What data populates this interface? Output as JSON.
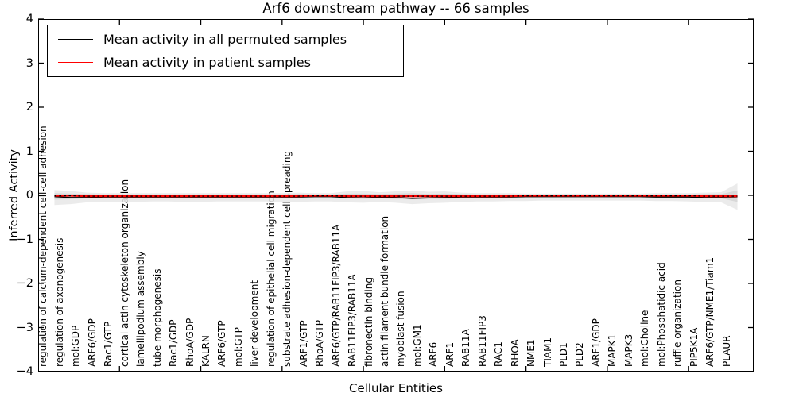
{
  "title": "Arf6 downstream pathway -- 66 samples",
  "legend": {
    "items": [
      {
        "label": "Mean activity in all permuted samples",
        "color": "#000000"
      },
      {
        "label": "Mean activity in patient samples",
        "color": "#ff0000"
      }
    ]
  },
  "axes": {
    "ylabel": "Inferred Activity",
    "xlabel": "Cellular Entities",
    "ytick_labels": [
      "4",
      "3",
      "2",
      "1",
      "0",
      "−1",
      "−2",
      "−3",
      "−4"
    ],
    "ytick_values": [
      4,
      3,
      2,
      1,
      0,
      -1,
      -2,
      -3,
      -4
    ]
  },
  "chart_data": {
    "type": "line",
    "title": "Arf6 downstream pathway -- 66 samples",
    "xlabel": "Cellular Entities",
    "ylabel": "Inferred Activity",
    "ylim": [
      -4,
      4
    ],
    "grid": false,
    "legend_position": "upper left",
    "x_major_tick_positions": [
      5,
      10,
      15,
      20,
      25,
      30,
      35,
      40
    ],
    "categories": [
      "regulation of calcium-dependent cell-cell adhesion",
      "regulation of axonogenesis",
      "mol:GDP",
      "ARF6/GDP",
      "Rac1/GTP",
      "cortical actin cytoskeleton organization",
      "lamellipodium assembly",
      "tube morphogenesis",
      "Rac1/GDP",
      "RhoA/GDP",
      "KALRN",
      "ARF6/GTP",
      "mol:GTP",
      "liver development",
      "regulation of epithelial cell migration",
      "substrate adhesion-dependent cell spreading",
      "ARF1/GTP",
      "RhoA/GTP",
      "ARF6/GTP/RAB11FIP3/RAB11A",
      "RAB11FIP3/RAB11A",
      "fibronectin binding",
      "actin filament bundle formation",
      "myoblast fusion",
      "mol:GM1",
      "ARF6",
      "ARF1",
      "RAB11A",
      "RAB11FIP3",
      "RAC1",
      "RHOA",
      "NME1",
      "TIAM1",
      "PLD1",
      "PLD2",
      "ARF1/GDP",
      "MAPK1",
      "MAPK3",
      "mol:Choline",
      "mol:Phosphatidic acid",
      "ruffle organization",
      "PIP5K1A",
      "ARF6/GTP/NME1/Tiam1",
      "PLAUR"
    ],
    "series": [
      {
        "name": "Mean activity in all permuted samples",
        "color": "#000000",
        "style": "solid",
        "values": [
          -0.03,
          -0.05,
          -0.05,
          -0.04,
          -0.04,
          -0.04,
          -0.04,
          -0.04,
          -0.04,
          -0.04,
          -0.04,
          -0.04,
          -0.04,
          -0.04,
          -0.04,
          -0.04,
          -0.03,
          -0.03,
          -0.05,
          -0.06,
          -0.04,
          -0.05,
          -0.07,
          -0.06,
          -0.05,
          -0.04,
          -0.04,
          -0.04,
          -0.04,
          -0.03,
          -0.03,
          -0.03,
          -0.03,
          -0.03,
          -0.03,
          -0.03,
          -0.03,
          -0.04,
          -0.04,
          -0.04,
          -0.05,
          -0.05,
          -0.06
        ]
      },
      {
        "name": "Mean activity in patient samples",
        "color": "#ff0000",
        "style": "solid-with-black-dash-overlay",
        "values": [
          -0.01,
          -0.01,
          -0.02,
          -0.02,
          -0.02,
          -0.02,
          -0.02,
          -0.02,
          -0.02,
          -0.02,
          -0.02,
          -0.02,
          -0.02,
          -0.02,
          -0.02,
          -0.02,
          -0.01,
          -0.01,
          -0.02,
          -0.02,
          -0.02,
          -0.02,
          -0.02,
          -0.02,
          -0.02,
          -0.02,
          -0.02,
          -0.02,
          -0.02,
          -0.01,
          -0.01,
          -0.01,
          -0.01,
          -0.01,
          -0.01,
          -0.01,
          -0.01,
          -0.01,
          -0.01,
          -0.01,
          -0.02,
          -0.02,
          -0.02
        ]
      }
    ],
    "bands": {
      "outer_color": "#e8e8e8",
      "inner_color": "#d5d5d5",
      "outer_upper": [
        0.12,
        0.1,
        0.06,
        0.05,
        0.05,
        0.05,
        0.05,
        0.05,
        0.05,
        0.05,
        0.05,
        0.05,
        0.05,
        0.05,
        0.05,
        0.06,
        0.05,
        0.05,
        0.09,
        0.1,
        0.07,
        0.09,
        0.11,
        0.08,
        0.09,
        0.06,
        0.05,
        0.05,
        0.05,
        0.04,
        0.04,
        0.04,
        0.04,
        0.04,
        0.04,
        0.04,
        0.04,
        0.05,
        0.05,
        0.05,
        0.06,
        0.07,
        0.27
      ],
      "outer_lower": [
        -0.22,
        -0.2,
        -0.16,
        -0.15,
        -0.15,
        -0.15,
        -0.14,
        -0.14,
        -0.15,
        -0.15,
        -0.14,
        -0.14,
        -0.14,
        -0.14,
        -0.15,
        -0.15,
        -0.14,
        -0.14,
        -0.16,
        -0.17,
        -0.15,
        -0.17,
        -0.2,
        -0.18,
        -0.17,
        -0.15,
        -0.14,
        -0.14,
        -0.13,
        -0.13,
        -0.12,
        -0.12,
        -0.12,
        -0.12,
        -0.12,
        -0.12,
        -0.12,
        -0.13,
        -0.13,
        -0.14,
        -0.15,
        -0.16,
        -0.33
      ],
      "inner_upper": [
        0.05,
        0.04,
        0.03,
        0.02,
        0.02,
        0.02,
        0.02,
        0.02,
        0.02,
        0.02,
        0.02,
        0.02,
        0.02,
        0.02,
        0.02,
        0.03,
        0.02,
        0.02,
        0.04,
        0.04,
        0.03,
        0.04,
        0.05,
        0.03,
        0.04,
        0.03,
        0.02,
        0.02,
        0.02,
        0.02,
        0.02,
        0.02,
        0.02,
        0.02,
        0.02,
        0.02,
        0.02,
        0.02,
        0.02,
        0.02,
        0.03,
        0.03,
        0.11
      ],
      "inner_lower": [
        -0.1,
        -0.09,
        -0.07,
        -0.07,
        -0.07,
        -0.07,
        -0.06,
        -0.06,
        -0.07,
        -0.07,
        -0.06,
        -0.06,
        -0.06,
        -0.06,
        -0.07,
        -0.07,
        -0.06,
        -0.06,
        -0.07,
        -0.08,
        -0.07,
        -0.08,
        -0.09,
        -0.08,
        -0.08,
        -0.07,
        -0.06,
        -0.06,
        -0.06,
        -0.06,
        -0.05,
        -0.05,
        -0.05,
        -0.05,
        -0.05,
        -0.05,
        -0.05,
        -0.06,
        -0.06,
        -0.06,
        -0.07,
        -0.07,
        -0.15
      ]
    }
  }
}
